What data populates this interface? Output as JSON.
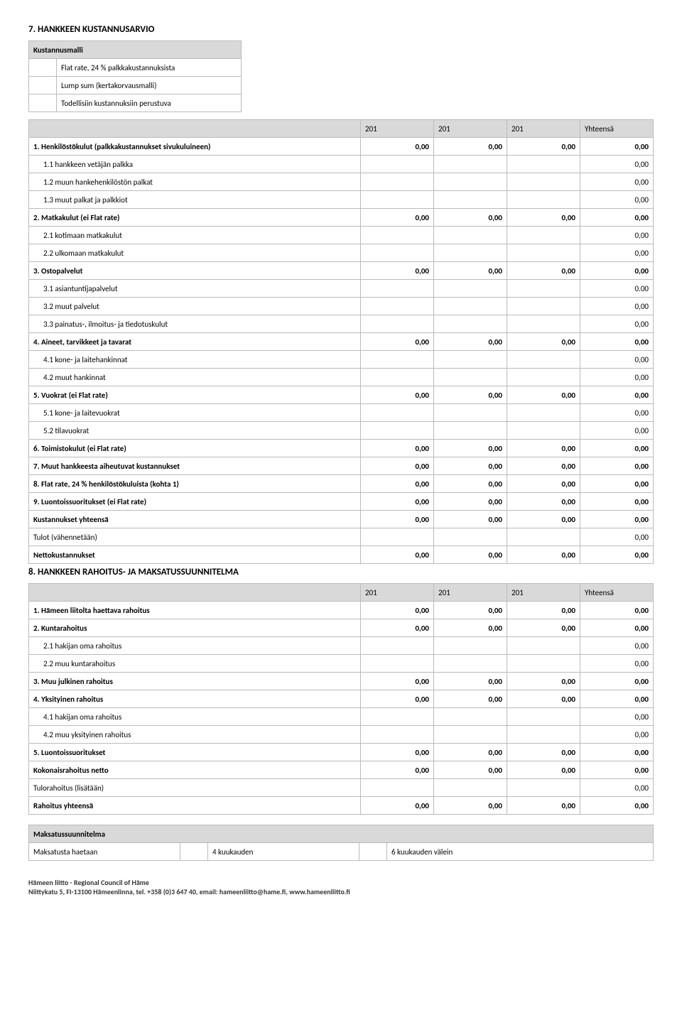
{
  "section7": {
    "title": "7. HANKKEEN KUSTANNUSARVIO",
    "kustannusmalli": {
      "header": "Kustannusmalli",
      "rows": [
        "Flat rate, 24 % palkkakustannuksista",
        "Lump sum  (kertakorvausmalli)",
        "Todellisiin kustannuksiin perustuva"
      ]
    },
    "years": [
      "201",
      "201",
      "201",
      "Yhteensä"
    ],
    "rows": [
      {
        "label": "1. Henkilöstökulut (palkkakustannukset sivukuluineen)",
        "bold": true,
        "values": [
          "0,00",
          "0,00",
          "0,00",
          "0,00"
        ]
      },
      {
        "label": "1.1 hankkeen vetäjän palkka",
        "indent": true,
        "values": [
          "",
          "",
          "",
          "0,00"
        ]
      },
      {
        "label": "1.2 muun hankehenkilöstön palkat",
        "indent": true,
        "values": [
          "",
          "",
          "",
          "0,00"
        ]
      },
      {
        "label": "1.3 muut palkat ja palkkiot",
        "indent": true,
        "values": [
          "",
          "",
          "",
          "0,00"
        ]
      },
      {
        "label": "2. Matkakulut (ei Flat rate)",
        "bold": true,
        "values": [
          "0,00",
          "0,00",
          "0,00",
          "0,00"
        ]
      },
      {
        "label": "2.1 kotimaan matkakulut",
        "indent": true,
        "values": [
          "",
          "",
          "",
          "0,00"
        ]
      },
      {
        "label": "2.2 ulkomaan matkakulut",
        "indent": true,
        "values": [
          "",
          "",
          "",
          "0,00"
        ]
      },
      {
        "label": "3. Ostopalvelut",
        "bold": true,
        "values": [
          "0,00",
          "0,00",
          "0,00",
          "0,00"
        ]
      },
      {
        "label": "3.1 asiantuntijapalvelut",
        "indent": true,
        "values": [
          "",
          "",
          "",
          "0.00"
        ]
      },
      {
        "label": "3.2 muut palvelut",
        "indent": true,
        "values": [
          "",
          "",
          "",
          "0,00"
        ]
      },
      {
        "label": "3.3 painatus-, ilmoitus- ja tiedotuskulut",
        "indent": true,
        "values": [
          "",
          "",
          "",
          "0,00"
        ]
      },
      {
        "label": "4. Aineet, tarvikkeet ja tavarat",
        "bold": true,
        "values": [
          "0,00",
          "0,00",
          "0,00",
          "0,00"
        ]
      },
      {
        "label": "4.1 kone- ja laitehankinnat",
        "indent": true,
        "values": [
          "",
          "",
          "",
          "0,00"
        ]
      },
      {
        "label": "4.2 muut hankinnat",
        "indent": true,
        "values": [
          "",
          "",
          "",
          "0,00"
        ]
      },
      {
        "label": "5. Vuokrat (ei Flat rate)",
        "bold": true,
        "values": [
          "0,00",
          "0,00",
          "0,00",
          "0,00"
        ]
      },
      {
        "label": "5.1 kone- ja laitevuokrat",
        "indent": true,
        "values": [
          "",
          "",
          "",
          "0,00"
        ]
      },
      {
        "label": "5.2 tilavuokrat",
        "indent": true,
        "values": [
          "",
          "",
          "",
          "0,00"
        ]
      },
      {
        "label": "6. Toimistokulut (ei Flat rate)",
        "bold": true,
        "values": [
          "0,00",
          "0,00",
          "0,00",
          "0,00"
        ]
      },
      {
        "label": "7. Muut hankkeesta aiheutuvat kustannukset",
        "bold": true,
        "values": [
          "0,00",
          "0,00",
          "0,00",
          "0,00"
        ]
      },
      {
        "label": "8. Flat rate,  24 % henkilöstökuluista (kohta 1)",
        "bold": true,
        "values": [
          "0,00",
          "0,00",
          "0,00",
          "0,00"
        ]
      },
      {
        "label": "9. Luontoissuoritukset (ei Flat rate)",
        "bold": true,
        "values": [
          "0,00",
          "0,00",
          "0,00",
          "0,00"
        ]
      },
      {
        "label": "Kustannukset yhteensä",
        "bold": true,
        "values": [
          "0,00",
          "0,00",
          "0,00",
          "0,00"
        ]
      },
      {
        "label": "Tulot (vähennetään)",
        "values": [
          "",
          "",
          "",
          "0,00"
        ]
      },
      {
        "label": "Nettokustannukset",
        "bold": true,
        "values": [
          "0,00",
          "0,00",
          "0,00",
          "0,00"
        ]
      }
    ]
  },
  "section8": {
    "title": "8. HANKKEEN RAHOITUS- JA MAKSATUSSUUNNITELMA",
    "years": [
      "201",
      "201",
      "201",
      "Yhteensä"
    ],
    "rows": [
      {
        "label": "1. Hämeen liitolta haettava rahoitus",
        "bold": true,
        "values": [
          "0,00",
          "0,00",
          "0,00",
          "0,00"
        ]
      },
      {
        "label": "2. Kuntarahoitus",
        "bold": true,
        "values": [
          "0,00",
          "0,00",
          "0,00",
          "0,00"
        ]
      },
      {
        "label": "2.1 hakijan oma rahoitus",
        "indent": true,
        "values": [
          "",
          "",
          "",
          "0,00"
        ]
      },
      {
        "label": "2.2 muu kuntarahoitus",
        "indent": true,
        "values": [
          "",
          "",
          "",
          "0,00"
        ]
      },
      {
        "label": "3. Muu julkinen rahoitus",
        "bold": true,
        "values": [
          "0,00",
          "0,00",
          "0,00",
          "0,00"
        ]
      },
      {
        "label": "4. Yksityinen rahoitus",
        "bold": true,
        "values": [
          "0,00",
          "0,00",
          "0,00",
          "0,00"
        ]
      },
      {
        "label": "4.1 hakijan oma rahoitus",
        "indent": true,
        "values": [
          "",
          "",
          "",
          "0,00"
        ]
      },
      {
        "label": "4.2 muu yksityinen rahoitus",
        "indent": true,
        "values": [
          "",
          "",
          "",
          "0,00"
        ]
      },
      {
        "label": "5. Luontoissuoritukset",
        "bold": true,
        "values": [
          "0,00",
          "0,00",
          "0,00",
          "0,00"
        ]
      },
      {
        "label": "Kokonaisrahoitus netto",
        "bold": true,
        "values": [
          "0,00",
          "0,00",
          "0,00",
          "0,00"
        ]
      },
      {
        "label": "Tulorahoitus (lisätään)",
        "values": [
          "",
          "",
          "",
          "0,00"
        ]
      },
      {
        "label": "Rahoitus yhteensä",
        "bold": true,
        "values": [
          "0,00",
          "0,00",
          "0,00",
          "0,00"
        ]
      }
    ],
    "maksu": {
      "header": "Maksatussuunnitelma",
      "label": "Maksatusta haetaan",
      "opt1": "4 kuukauden",
      "opt2": "6 kuukauden välein"
    }
  },
  "footer": {
    "line1": "Hämeen liitto - Regional Council of Häme",
    "line2": "Niittykatu 5, FI-13100 Hämeenlinna,  tel. +358 (0)3 647 40, email: hameenliitto@hame.fi,  www.hameenliitto.fi"
  }
}
